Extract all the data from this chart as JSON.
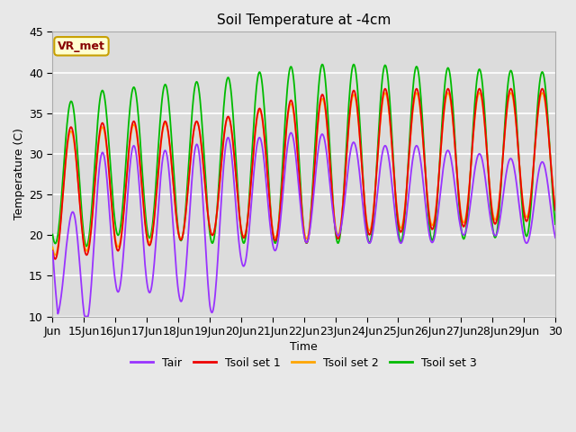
{
  "title": "Soil Temperature at -4cm",
  "xlabel": "Time",
  "ylabel": "Temperature (C)",
  "ylim": [
    10,
    45
  ],
  "xlim_days": [
    14,
    30
  ],
  "annotation_label": "VR_met",
  "annotation_color_bg": "#FFFFD0",
  "annotation_color_border": "#C8A000",
  "annotation_color_text": "#880000",
  "fig_bg": "#E8E8E8",
  "plot_bg": "#DCDCDC",
  "grid_color": "#FFFFFF",
  "colors": {
    "Tair": "#9933FF",
    "Tsoil1": "#EE0000",
    "Tsoil2": "#FFA500",
    "Tsoil3": "#00BB00"
  },
  "legend_labels": [
    "Tair",
    "Tsoil set 1",
    "Tsoil set 2",
    "Tsoil set 3"
  ],
  "tick_labels": [
    "Jun",
    "15Jun",
    "16Jun",
    "17Jun",
    "18Jun",
    "19Jun",
    "20Jun",
    "21Jun",
    "22Jun",
    "23Jun",
    "24Jun",
    "25Jun",
    "26Jun",
    "27Jun",
    "28Jun",
    "29Jun",
    "30"
  ],
  "tick_positions": [
    14,
    15,
    16,
    17,
    18,
    19,
    20,
    21,
    22,
    23,
    24,
    25,
    26,
    27,
    28,
    29,
    30
  ],
  "yticks": [
    10,
    15,
    20,
    25,
    30,
    35,
    40,
    45
  ]
}
